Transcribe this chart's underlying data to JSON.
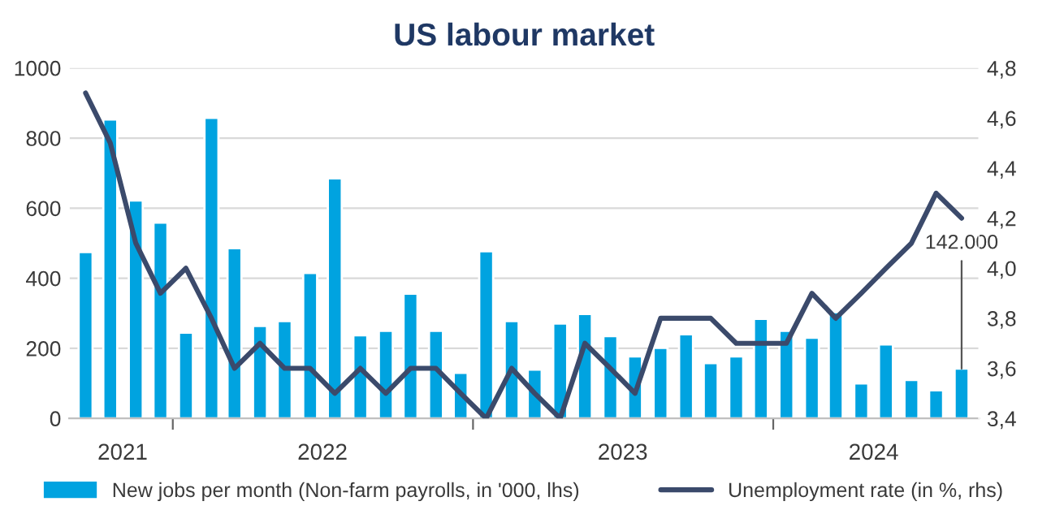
{
  "chart_data": {
    "type": "bar",
    "title": "US labour market",
    "x": [
      "2021-09",
      "2021-10",
      "2021-11",
      "2021-12",
      "2022-01",
      "2022-02",
      "2022-03",
      "2022-04",
      "2022-05",
      "2022-06",
      "2022-07",
      "2022-08",
      "2022-09",
      "2022-10",
      "2022-11",
      "2022-12",
      "2023-01",
      "2023-02",
      "2023-03",
      "2023-04",
      "2023-05",
      "2023-06",
      "2023-07",
      "2023-08",
      "2023-09",
      "2023-10",
      "2023-11",
      "2023-12",
      "2024-01",
      "2024-02",
      "2024-03",
      "2024-04",
      "2024-05",
      "2024-06",
      "2024-07",
      "2024-08"
    ],
    "xlim": [
      "2021-08-12",
      "2024-08-22"
    ],
    "xticks": [
      {
        "value": "2021-10-16",
        "label": "2021"
      },
      {
        "value": "2021-12-16",
        "label": null
      },
      {
        "value": "2022-06-16",
        "label": "2022"
      },
      {
        "value": "2022-12-16",
        "label": null
      },
      {
        "value": "2023-06-16",
        "label": "2023"
      },
      {
        "value": "2023-12-16",
        "label": null
      },
      {
        "value": "2024-04-16",
        "label": "2024"
      }
    ],
    "series": [
      {
        "name": "New jobs per month (Non-farm payrolls, in '000, lhs)",
        "color": "#00a3e0",
        "values": [
          475,
          853,
          622,
          559,
          245,
          858,
          486,
          264,
          278,
          415,
          685,
          237,
          250,
          356,
          250,
          130,
          477,
          278,
          139,
          271,
          298,
          235,
          177,
          201,
          240,
          158,
          177,
          284,
          250,
          230,
          303,
          100,
          211,
          110,
          80,
          142
        ]
      },
      {
        "name": "Unemployment rate (in %, rhs)",
        "type": "line",
        "axis": "y2",
        "color": "#3b4a6b",
        "values": [
          4.7,
          4.5,
          4.1,
          3.9,
          4.0,
          3.8,
          3.6,
          3.7,
          3.6,
          3.6,
          3.5,
          3.6,
          3.5,
          3.6,
          3.6,
          3.5,
          3.4,
          3.6,
          3.5,
          3.4,
          3.7,
          3.6,
          3.5,
          3.8,
          3.8,
          3.8,
          3.7,
          3.7,
          3.7,
          3.9,
          3.8,
          3.9,
          4.0,
          4.1,
          4.3,
          4.2
        ]
      }
    ],
    "annotations": [
      {
        "text": "142.000",
        "x": "2024-08",
        "y": 142
      }
    ],
    "ylim": [
      0,
      1000
    ],
    "yticks": [
      0,
      200,
      400,
      600,
      800,
      1000
    ],
    "y2lim": [
      3.4,
      4.8
    ],
    "y2ticks": [
      {
        "value": 3.4,
        "label": "3,4"
      },
      {
        "value": 3.6,
        "label": "3,6"
      },
      {
        "value": 3.8,
        "label": "3,8"
      },
      {
        "value": 4.0,
        "label": "4,0"
      },
      {
        "value": 4.2,
        "label": "4,2"
      },
      {
        "value": 4.4,
        "label": "4,4"
      },
      {
        "value": 4.6,
        "label": "4,6"
      },
      {
        "value": 4.8,
        "label": "4,8"
      }
    ],
    "grid": "y",
    "legend": "bottom"
  }
}
